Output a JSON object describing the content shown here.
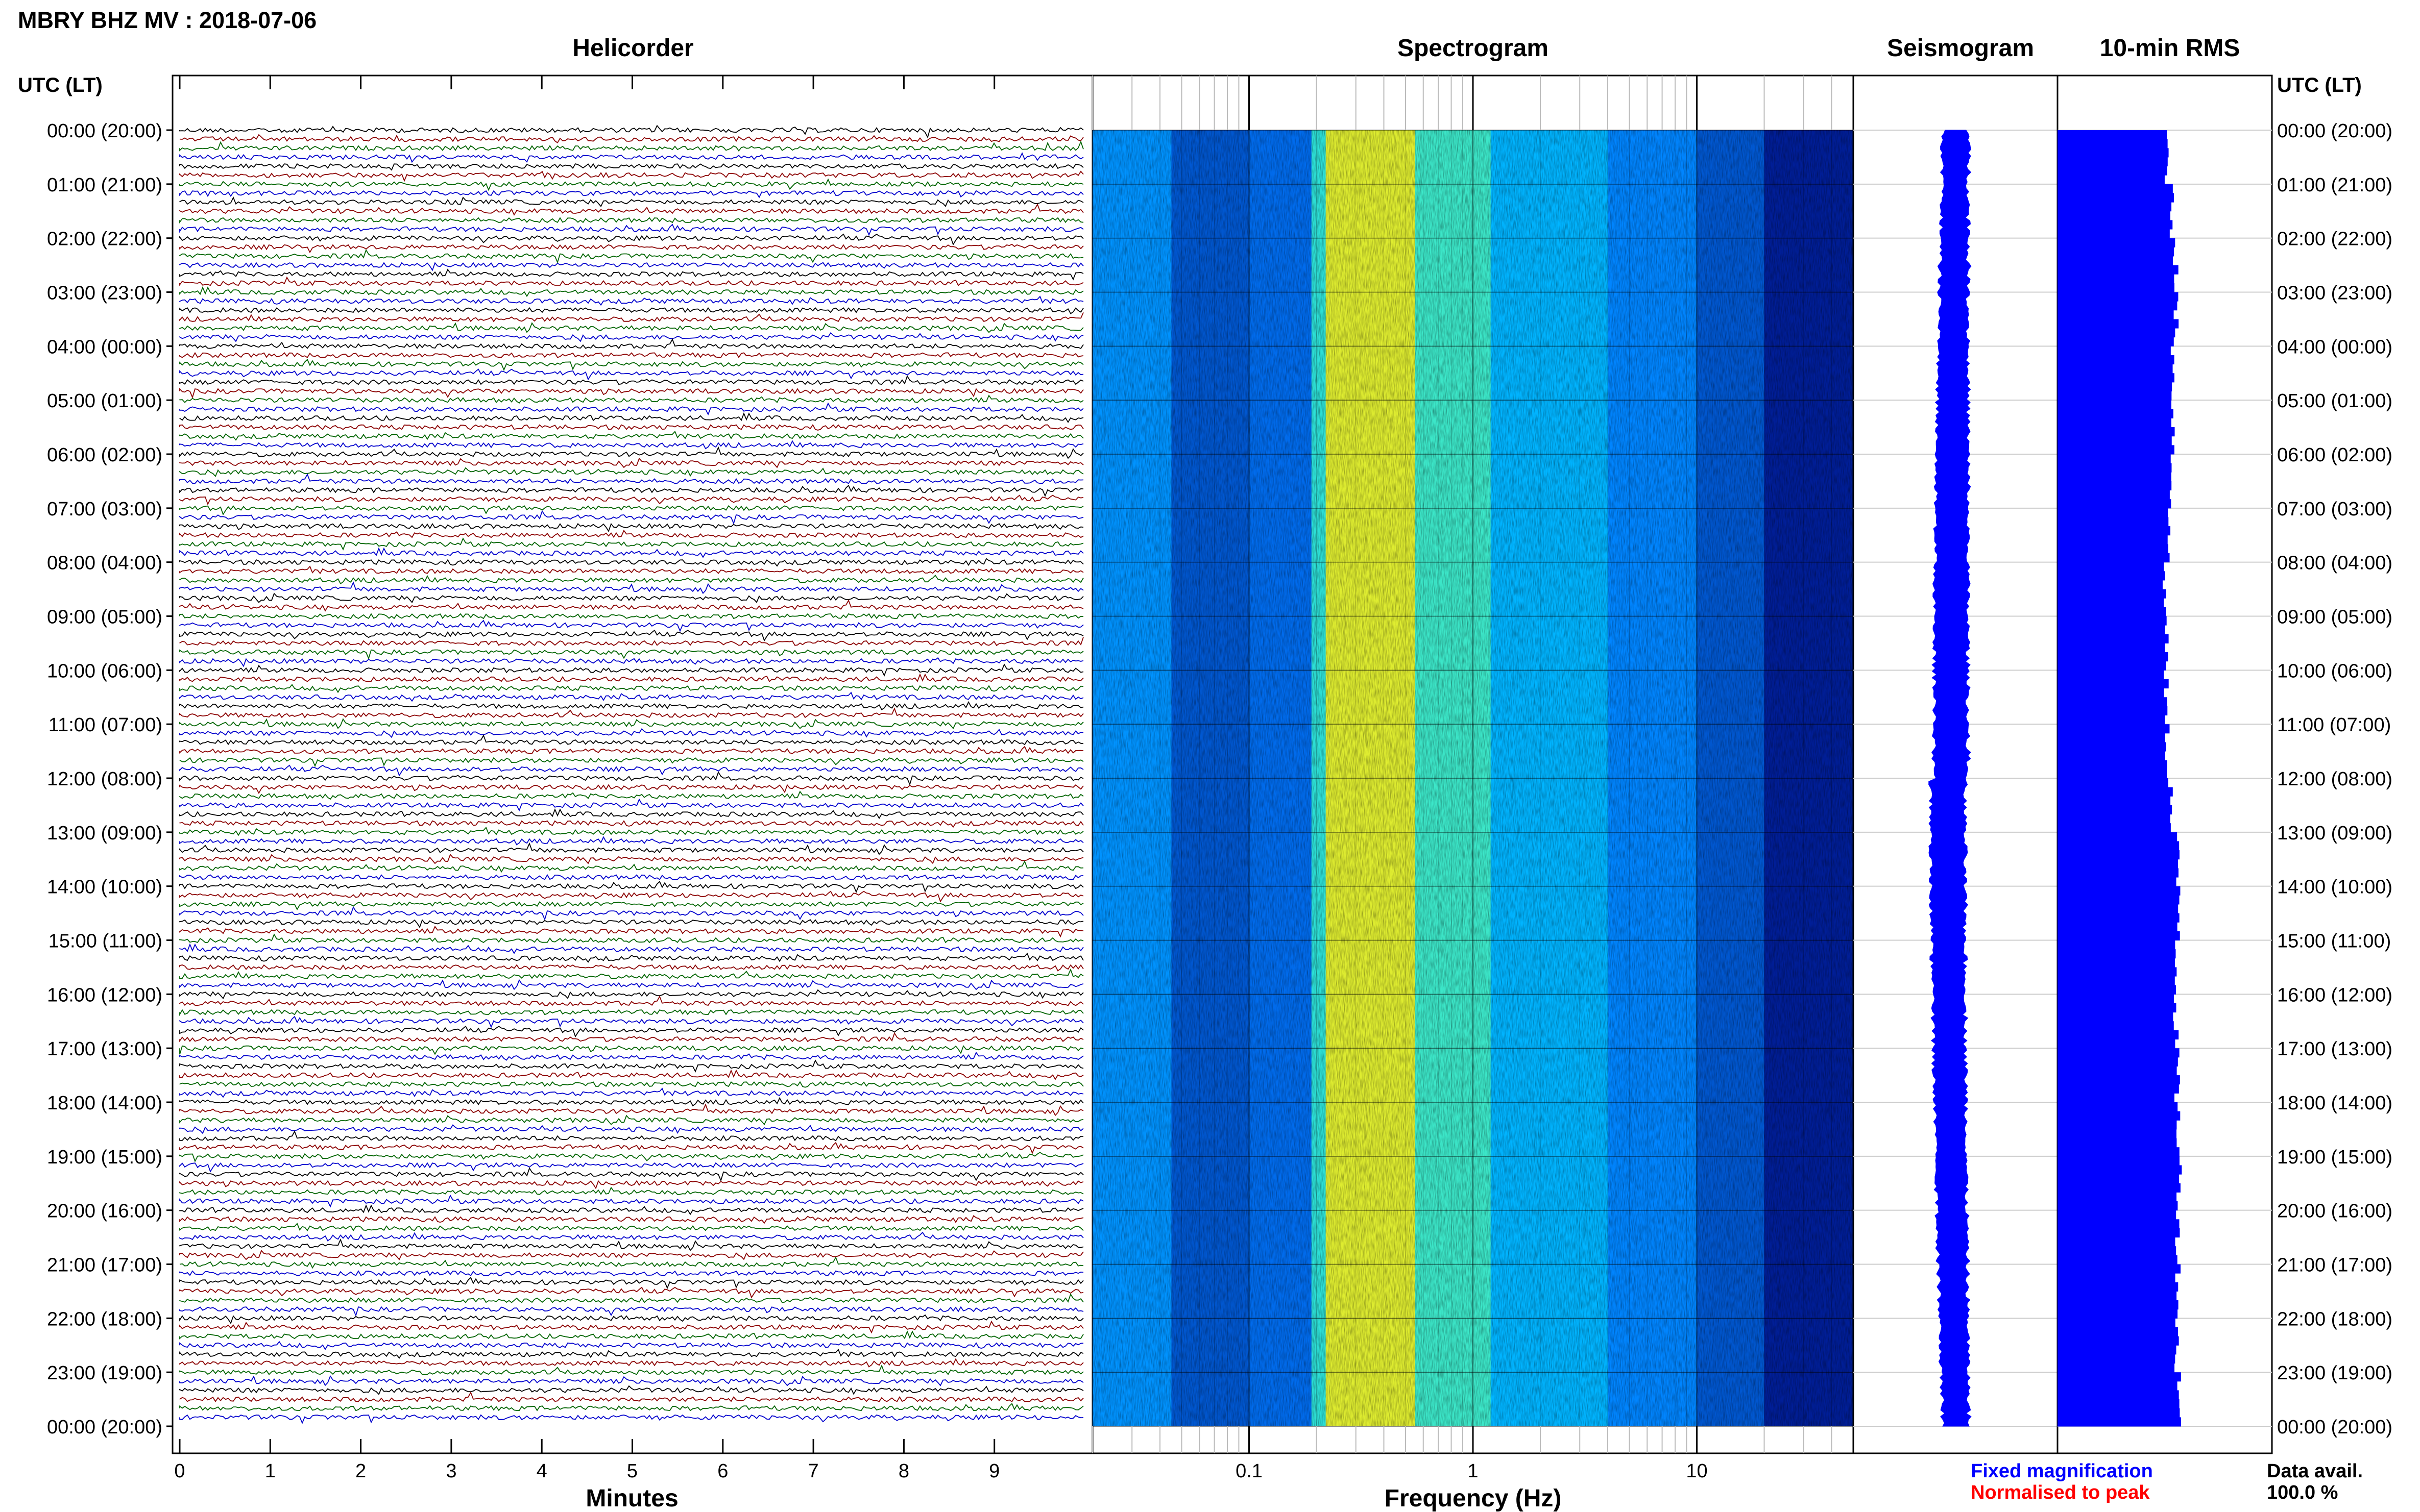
{
  "header": {
    "title": "MBRY BHZ MV : 2018-07-06"
  },
  "panels": {
    "helicorder": "Helicorder",
    "spectrogram": "Spectrogram",
    "seismogram": "Seismogram",
    "rms": "10-min RMS"
  },
  "axis": {
    "left_label": "UTC (LT)",
    "right_label": "UTC (LT)",
    "time_ticks": [
      "00:00 (20:00)",
      "01:00 (21:00)",
      "02:00 (22:00)",
      "03:00 (23:00)",
      "04:00 (00:00)",
      "05:00 (01:00)",
      "06:00 (02:00)",
      "07:00 (03:00)",
      "08:00 (04:00)",
      "09:00 (05:00)",
      "10:00 (06:00)",
      "11:00 (07:00)",
      "12:00 (08:00)",
      "13:00 (09:00)",
      "14:00 (10:00)",
      "15:00 (11:00)",
      "16:00 (12:00)",
      "17:00 (13:00)",
      "18:00 (14:00)",
      "19:00 (15:00)",
      "20:00 (16:00)",
      "21:00 (17:00)",
      "22:00 (18:00)",
      "23:00 (19:00)",
      "00:00 (20:00)"
    ],
    "minutes_ticks": [
      "0",
      "1",
      "2",
      "3",
      "4",
      "5",
      "6",
      "7",
      "8",
      "9"
    ],
    "minutes_label": "Minutes",
    "freq_ticks": [
      "0.1",
      "1",
      "10"
    ],
    "freq_label": "Frequency (Hz)"
  },
  "legend": {
    "fixed": "Fixed magnification",
    "normalised": "Normalised to peak",
    "fixed_color": "#0000ff",
    "normalised_color": "#ff0000"
  },
  "availability": {
    "label": "Data avail.",
    "value": "100.0 %"
  },
  "colors": {
    "helicorder_traces": [
      "#000000",
      "#8b0000",
      "#006400",
      "#0000cd"
    ],
    "seismogram": "#0000ff",
    "rms": "#0000ff"
  },
  "chart_data": [
    {
      "type": "line",
      "title": "Helicorder",
      "xlabel": "Minutes",
      "xlim": [
        0,
        10
      ],
      "ylabel": "UTC (LT)",
      "trace_length_minutes": 10,
      "traces_per_day": 144
    },
    {
      "type": "heatmap",
      "title": "Spectrogram",
      "xlabel": "Frequency (Hz)",
      "x_scale": "log",
      "xlim": [
        0.02,
        50
      ],
      "ylabel": "UTC (LT)",
      "bands": [
        {
          "from": 0.02,
          "to": 0.045,
          "level": 0.34
        },
        {
          "from": 0.045,
          "to": 0.1,
          "level": 0.2
        },
        {
          "from": 0.1,
          "to": 0.19,
          "level": 0.26
        },
        {
          "from": 0.19,
          "to": 0.22,
          "level": 0.48
        },
        {
          "from": 0.22,
          "to": 0.55,
          "level": 0.64
        },
        {
          "from": 0.55,
          "to": 1.2,
          "level": 0.5
        },
        {
          "from": 1.2,
          "to": 4,
          "level": 0.39
        },
        {
          "from": 4,
          "to": 10,
          "level": 0.32
        },
        {
          "from": 10,
          "to": 20,
          "level": 0.2
        },
        {
          "from": 20,
          "to": 50,
          "level": 0.06
        }
      ]
    },
    {
      "type": "area",
      "title": "Seismogram"
    },
    {
      "type": "bar",
      "title": "10-min RMS",
      "orientation": "horizontal",
      "hours": [
        0,
        1,
        2,
        3,
        4,
        5,
        6,
        7,
        8,
        9,
        10,
        11,
        12,
        13,
        14,
        15,
        16,
        17,
        18,
        19,
        20,
        21,
        22,
        23
      ],
      "values": [
        0.9,
        0.94,
        0.97,
        0.97,
        0.95,
        0.95,
        0.94,
        0.91,
        0.88,
        0.89,
        0.89,
        0.9,
        0.93,
        0.98,
        1.0,
        0.98,
        0.97,
        0.98,
        0.99,
        1.0,
        0.99,
        0.99,
        0.98,
        1.0
      ]
    }
  ]
}
